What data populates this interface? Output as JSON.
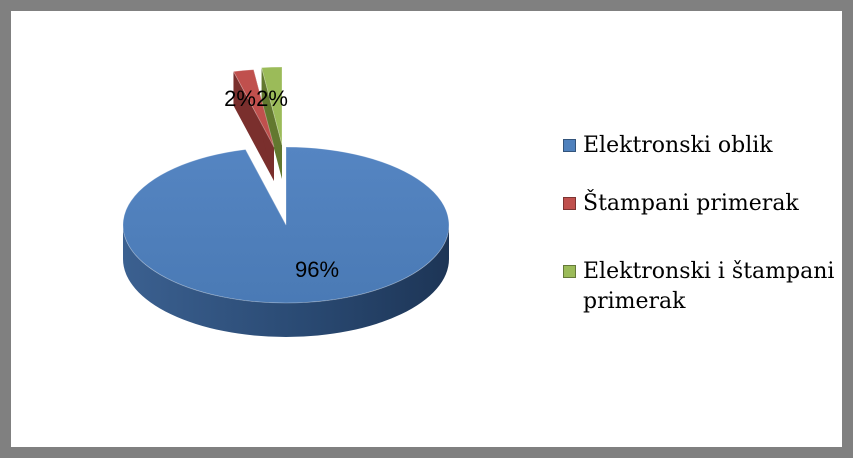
{
  "chart_data": {
    "type": "pie",
    "title": "",
    "categories": [
      "Elektronski oblik",
      "Štampani primerak",
      "Elektronski i štampani primerak"
    ],
    "values": [
      96,
      2,
      2
    ],
    "data_labels": [
      "96%",
      "2%",
      "2%"
    ],
    "colors": [
      "#4F81BD",
      "#C0504D",
      "#9BBB59"
    ],
    "style": "3d-exploded",
    "legend_position": "right"
  }
}
